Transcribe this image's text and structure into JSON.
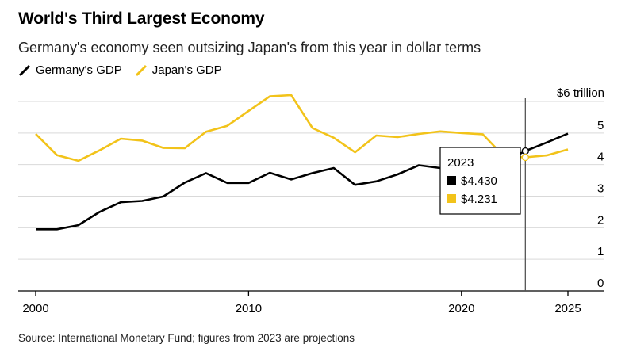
{
  "chart_data": {
    "type": "line",
    "title": "World's Third Largest Economy",
    "subtitle": "Germany's economy seen outsizing Japan's from this year in dollar terms",
    "x": [
      2000,
      2001,
      2002,
      2003,
      2004,
      2005,
      2006,
      2007,
      2008,
      2009,
      2010,
      2011,
      2012,
      2013,
      2014,
      2015,
      2016,
      2017,
      2018,
      2019,
      2020,
      2021,
      2022,
      2023,
      2024,
      2025
    ],
    "series": [
      {
        "name": "Germany's GDP",
        "color": "#000000",
        "values": [
          1.95,
          1.95,
          2.08,
          2.5,
          2.81,
          2.85,
          2.99,
          3.43,
          3.73,
          3.42,
          3.42,
          3.74,
          3.53,
          3.73,
          3.89,
          3.36,
          3.47,
          3.69,
          3.98,
          3.89,
          3.88,
          4.26,
          4.08,
          4.43,
          4.7,
          4.98
        ]
      },
      {
        "name": "Japan's GDP",
        "color": "#f2c31a",
        "values": [
          4.97,
          4.3,
          4.12,
          4.45,
          4.82,
          4.76,
          4.53,
          4.52,
          5.04,
          5.23,
          5.7,
          6.16,
          6.2,
          5.16,
          4.85,
          4.39,
          4.92,
          4.87,
          4.97,
          5.05,
          5.0,
          4.96,
          4.26,
          4.23,
          4.29,
          4.48
        ]
      }
    ],
    "y_unit_label": "$6 trillion",
    "y_ticks": [
      0,
      1,
      2,
      3,
      4,
      5
    ],
    "ylim": [
      0,
      6
    ],
    "x_ticks": [
      2000,
      2010,
      2020,
      2025
    ],
    "xlim": [
      2000,
      2025
    ],
    "projection_start": 2023,
    "grid": true,
    "legend": "top-left",
    "tooltip": {
      "year_label": "2023",
      "germany_value": "$4.430",
      "japan_value": "$4.231"
    },
    "source": "Source: International Monetary Fund; figures from 2023 are projections"
  }
}
